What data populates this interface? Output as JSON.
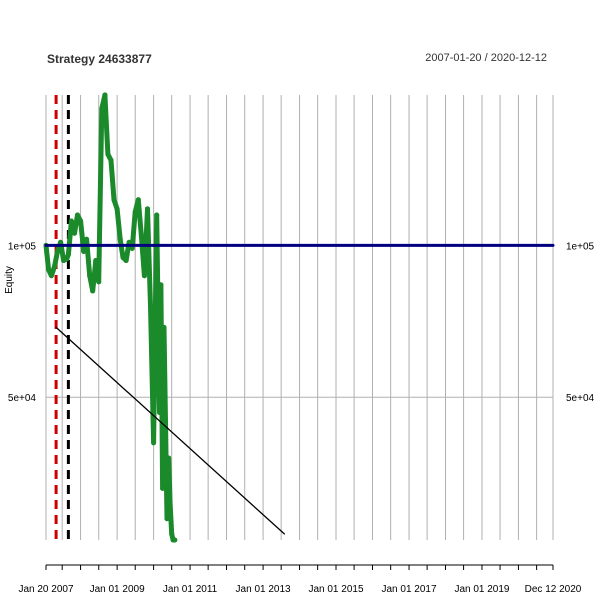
{
  "header": {
    "title": "Strategy 24633877",
    "date_range": "2007-01-20 / 2020-12-12"
  },
  "chart_data": {
    "type": "line",
    "title": "Strategy 24633877",
    "ylabel": "Equity",
    "xlabel": "",
    "x_start": "2007-01-20",
    "x_end": "2020-12-12",
    "ylim": [
      5000,
      150000
    ],
    "y_ticks": [
      {
        "value": 100000,
        "label": "1e+05"
      },
      {
        "value": 50000,
        "label": "5e+04"
      }
    ],
    "x_ticks": [
      {
        "date": "2007-01-20",
        "label": "Jan 20 2007"
      },
      {
        "date": "2009-01-01",
        "label": "Jan 01 2009"
      },
      {
        "date": "2011-01-01",
        "label": "Jan 01 2011"
      },
      {
        "date": "2013-01-01",
        "label": "Jan 01 2013"
      },
      {
        "date": "2015-01-01",
        "label": "Jan 01 2015"
      },
      {
        "date": "2017-01-01",
        "label": "Jan 01 2017"
      },
      {
        "date": "2019-01-01",
        "label": "Jan 01 2019"
      },
      {
        "date": "2020-12-12",
        "label": "Dec 12 2020"
      }
    ],
    "grid": true,
    "grid_dates": [
      "2007-01-20",
      "2007-07-01",
      "2008-01-01",
      "2008-07-01",
      "2009-01-01",
      "2009-07-01",
      "2010-01-01",
      "2010-07-01",
      "2011-01-01",
      "2011-07-01",
      "2012-01-01",
      "2012-07-01",
      "2013-01-01",
      "2013-07-01",
      "2014-01-01",
      "2014-07-01",
      "2015-01-01",
      "2015-07-01",
      "2016-01-01",
      "2016-07-01",
      "2017-01-01",
      "2017-07-01",
      "2018-01-01",
      "2018-07-01",
      "2019-01-01",
      "2019-07-01",
      "2020-01-01",
      "2020-07-01",
      "2020-12-12"
    ],
    "colors": {
      "equity": "#1b8a2a",
      "baseline": "#000080",
      "trend": "#000000",
      "marker_red": "#cc0000",
      "marker_black": "#000000",
      "grid": "#b0b0b0"
    },
    "series": [
      {
        "style": "equity",
        "x": [
          "2007-01-20",
          "2007-02-15",
          "2007-03-15",
          "2007-04-15",
          "2007-05-15",
          "2007-06-15",
          "2007-07-15",
          "2007-08-15",
          "2007-09-01",
          "2007-10-01",
          "2007-11-01",
          "2007-12-01",
          "2008-01-01",
          "2008-02-01",
          "2008-03-01",
          "2008-04-01",
          "2008-05-01",
          "2008-06-01",
          "2008-07-01",
          "2008-08-01",
          "2008-09-01",
          "2008-10-01",
          "2008-11-01",
          "2008-12-01",
          "2009-01-01",
          "2009-02-01",
          "2009-03-01",
          "2009-04-01",
          "2009-05-01",
          "2009-06-01",
          "2009-07-01",
          "2009-08-01",
          "2009-09-01",
          "2009-10-01",
          "2009-11-01",
          "2009-12-01",
          "2010-01-01",
          "2010-02-01",
          "2010-03-01",
          "2010-03-15",
          "2010-04-01",
          "2010-04-15",
          "2010-05-01",
          "2010-05-15",
          "2010-06-01",
          "2010-06-15",
          "2010-07-01",
          "2010-07-15",
          "2010-08-01"
        ],
        "y": [
          100000,
          92000,
          90000,
          93000,
          98000,
          101000,
          95000,
          95500,
          97000,
          108000,
          104000,
          110000,
          108000,
          98000,
          102000,
          90000,
          85000,
          95000,
          88000,
          145000,
          150000,
          130000,
          128000,
          115000,
          112000,
          102000,
          96000,
          95000,
          101000,
          99000,
          111000,
          115000,
          103000,
          90000,
          112000,
          80000,
          35000,
          110000,
          45000,
          87000,
          20000,
          73000,
          40000,
          10000,
          30000,
          15000,
          5000,
          3000,
          3000
        ]
      },
      {
        "style": "baseline",
        "x": [
          "2007-01-20",
          "2020-12-12"
        ],
        "y": [
          100000,
          100000
        ]
      },
      {
        "style": "trend",
        "x": [
          "2007-05-01",
          "2013-08-01"
        ],
        "y": [
          73000,
          5000
        ]
      }
    ],
    "vertical_markers": [
      {
        "style": "marker_red",
        "date": "2007-05-01"
      },
      {
        "style": "marker_black",
        "date": "2007-09-01"
      }
    ]
  }
}
